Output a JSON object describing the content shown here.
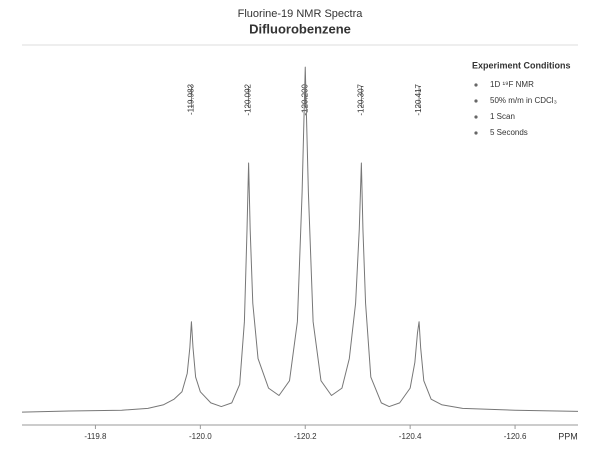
{
  "chart_data": {
    "type": "line",
    "title": "Fluorine-19 NMR Spectra",
    "subtitle": "Difluorobenzene",
    "x_label": "PPM",
    "color": "#777777",
    "xlim": [
      -119.66,
      -120.72
    ],
    "ylim": [
      -3,
      100
    ],
    "xticks": [
      -119.8,
      {
        "value": -120.0,
        "label": "-120.0"
      },
      -120.2,
      -120.4,
      -120.6
    ],
    "peaks": [
      -119.983,
      -120.092,
      {
        "value": -120.2,
        "label": "-120.200"
      },
      -120.307,
      -120.417
    ],
    "conditions": {
      "title": "Experiment Conditions",
      "items": [
        "1D ¹⁹F NMR",
        "50% m/m in CDCl₃",
        "1 Scan",
        "5 Seconds"
      ]
    },
    "x": [
      -119.66,
      -119.75,
      -119.85,
      -119.9,
      -119.93,
      -119.95,
      -119.965,
      -119.975,
      -119.98,
      -119.983,
      -119.986,
      -119.991,
      -120.0,
      -120.02,
      -120.04,
      -120.06,
      -120.075,
      -120.084,
      -120.089,
      -120.092,
      -120.095,
      -120.1,
      -120.11,
      -120.13,
      -120.15,
      -120.17,
      -120.185,
      -120.194,
      -120.2,
      -120.206,
      -120.215,
      -120.23,
      -120.25,
      -120.27,
      -120.284,
      -120.296,
      -120.303,
      -120.307,
      -120.31,
      -120.315,
      -120.325,
      -120.345,
      -120.36,
      -120.38,
      -120.4,
      -120.409,
      -120.414,
      -120.417,
      -120.42,
      -120.426,
      -120.44,
      -120.46,
      -120.5,
      -120.6,
      -120.72
    ],
    "values": [
      0.5,
      0.8,
      1,
      1.5,
      2.5,
      4,
      6,
      11,
      18,
      25,
      18,
      10,
      6,
      3,
      2,
      3,
      8,
      25,
      50,
      68,
      50,
      30,
      15,
      7,
      5,
      9,
      25,
      60,
      94,
      60,
      25,
      9,
      5,
      7,
      15,
      30,
      50,
      68,
      50,
      30,
      10,
      3,
      2,
      3,
      7,
      14,
      22,
      25,
      18,
      9,
      4,
      2.5,
      1.5,
      1,
      0.7
    ]
  }
}
